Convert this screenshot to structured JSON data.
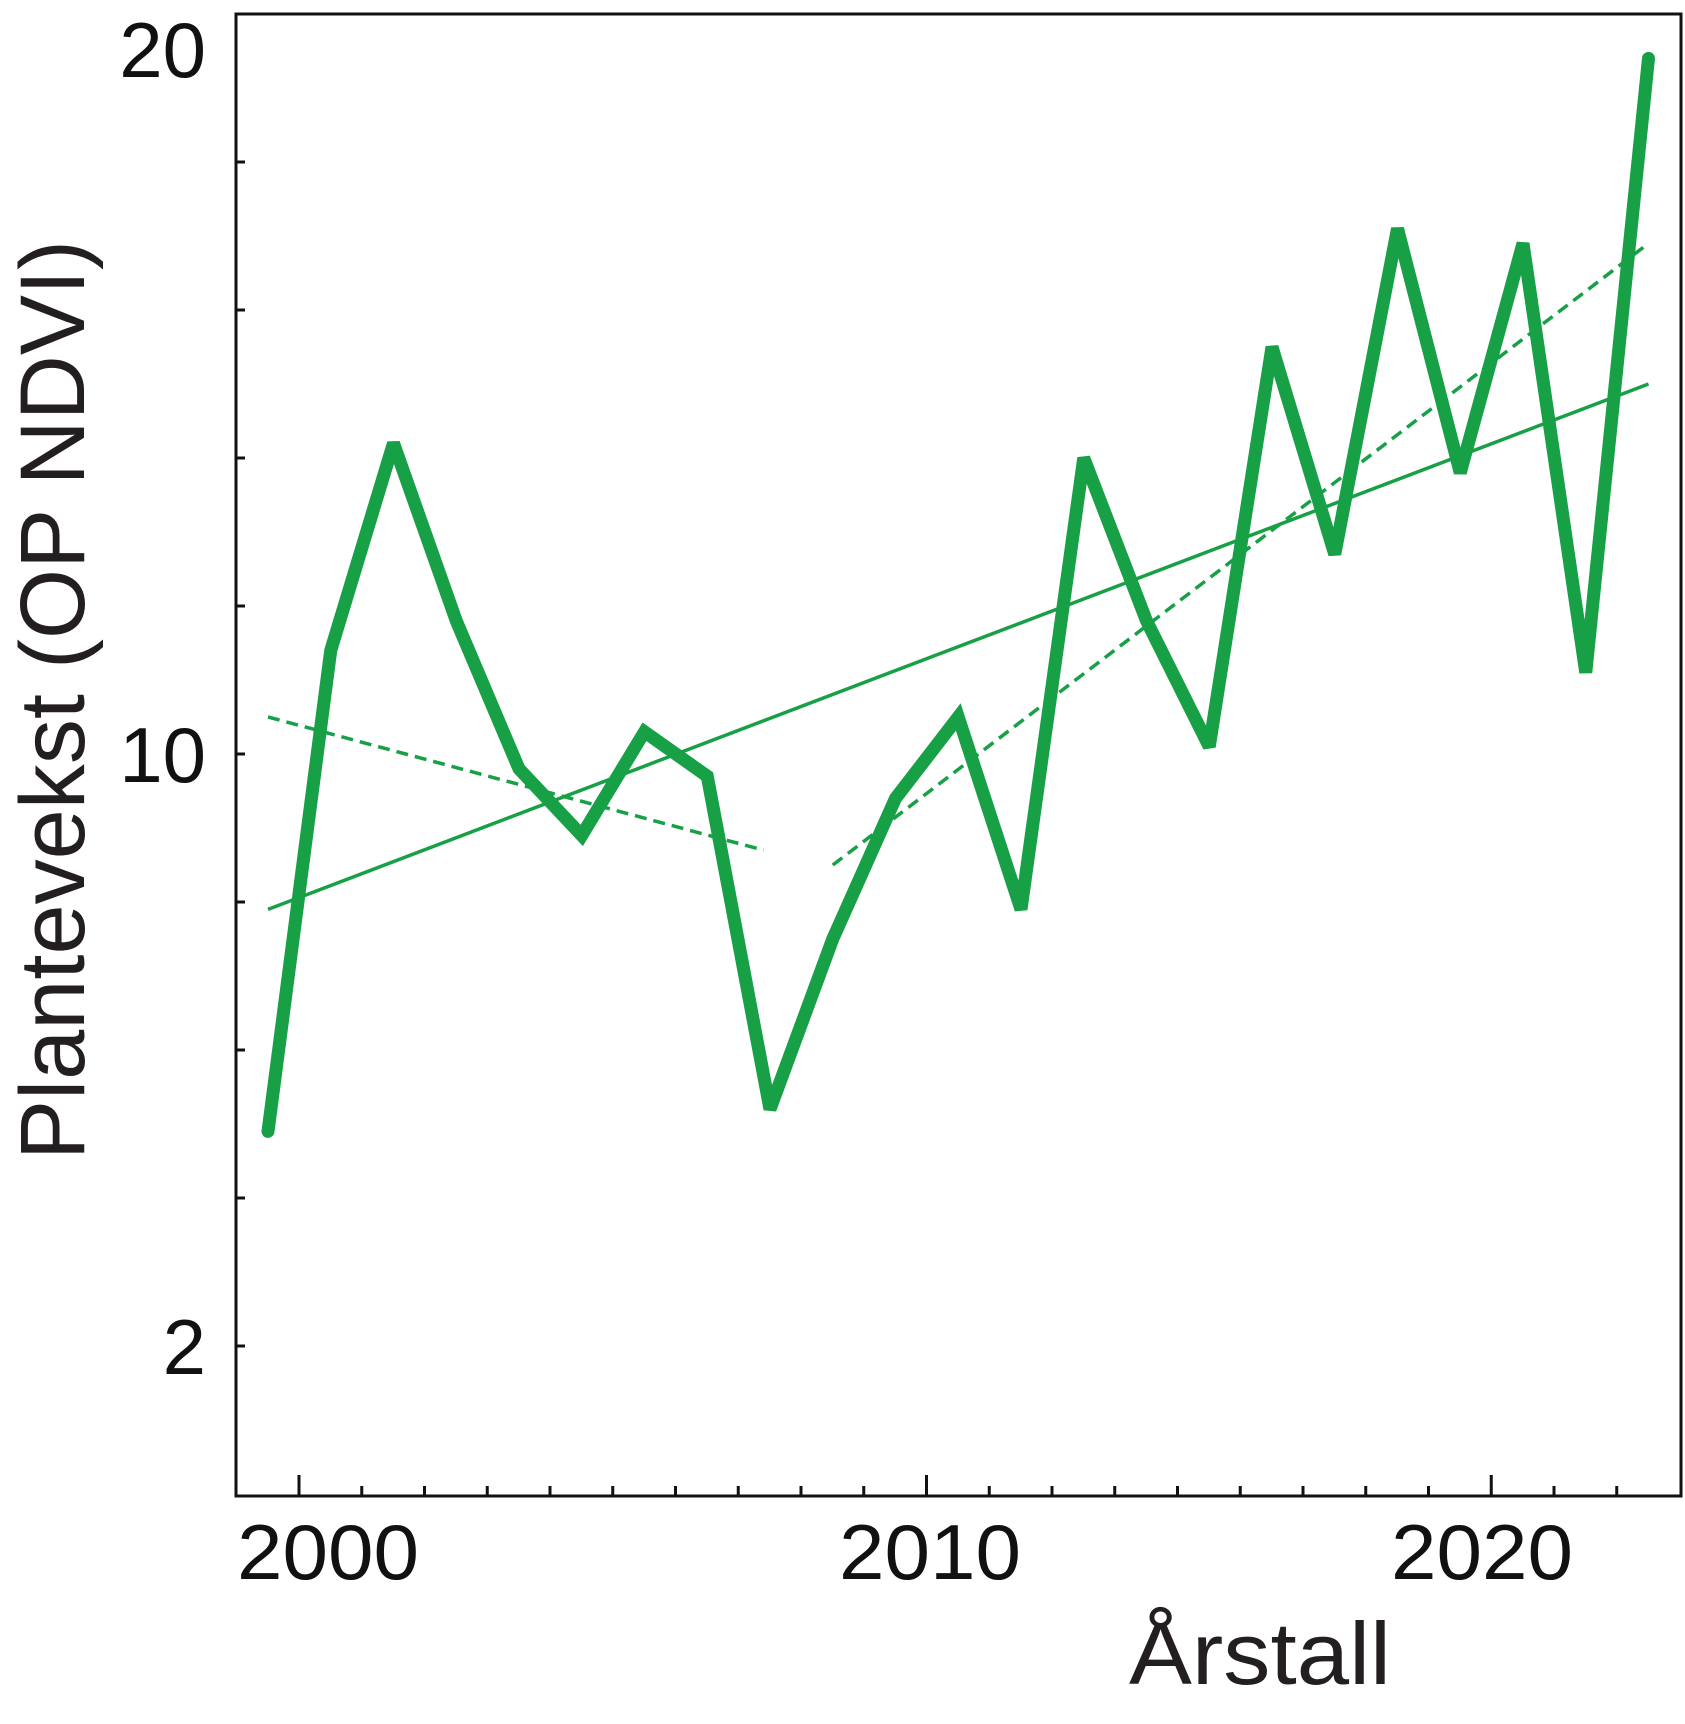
{
  "chart_data": {
    "type": "line",
    "title": "",
    "xlabel": "Årstall",
    "ylabel": "Plantevekst (OP NDVI)",
    "ylim": [
      0,
      20
    ],
    "y_ticks": [
      2,
      4,
      6,
      8,
      10,
      12,
      14,
      16,
      18
    ],
    "y_tick_labels": [
      {
        "value": 2,
        "label": "2"
      },
      {
        "value": 10,
        "label": "10"
      },
      {
        "value": 20,
        "label": "20"
      }
    ],
    "x_tick_labels": [
      "2000",
      "2010",
      "2020"
    ],
    "grid": false,
    "color": "#17a046",
    "x": [
      2000,
      2001,
      2002,
      2003,
      2004,
      2005,
      2006,
      2007,
      2008,
      2009,
      2010,
      2011,
      2012,
      2013,
      2014,
      2015,
      2016,
      2017,
      2018,
      2019,
      2020,
      2021,
      2022
    ],
    "series": [
      {
        "values": [
          4.9,
          11.4,
          14.2,
          11.8,
          9.8,
          8.9,
          10.3,
          9.7,
          5.2,
          7.5,
          9.4,
          10.5,
          7.9,
          14.0,
          11.8,
          10.1,
          15.5,
          12.7,
          17.1,
          13.8,
          16.9,
          11.1,
          19.4
        ]
      }
    ],
    "trend_lines": [
      {
        "style": "solid",
        "x": [
          2000,
          2022
        ],
        "y": [
          7.9,
          15.0
        ]
      },
      {
        "style": "dashed",
        "x": [
          2000,
          2007.9
        ],
        "y": [
          10.5,
          8.7
        ]
      },
      {
        "style": "dashed",
        "x": [
          2009.0,
          2022
        ],
        "y": [
          8.5,
          16.9
        ]
      }
    ]
  }
}
